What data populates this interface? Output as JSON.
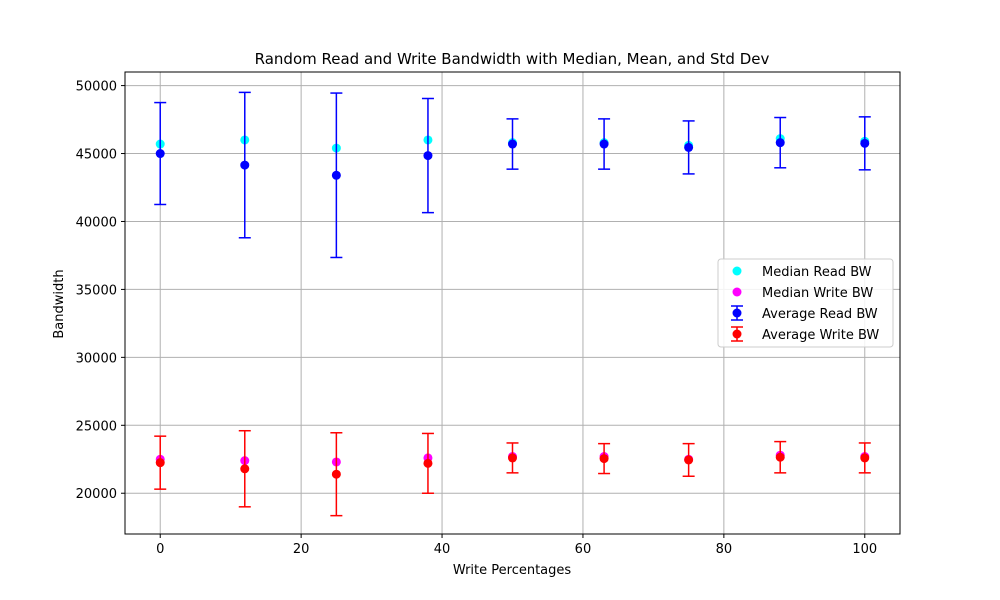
{
  "chart_data": {
    "type": "scatter",
    "title": "Random Read and Write Bandwidth with Median, Mean, and Std Dev",
    "xlabel": "Write Percentages",
    "ylabel": "Bandwidth",
    "xlim": [
      -5,
      105
    ],
    "ylim": [
      17000,
      51000
    ],
    "xticks": [
      0,
      20,
      40,
      60,
      80,
      100
    ],
    "yticks": [
      20000,
      25000,
      30000,
      35000,
      40000,
      45000,
      50000
    ],
    "grid": true,
    "legend_position": "center-right",
    "x": [
      0,
      12,
      25,
      38,
      50,
      63,
      75,
      88,
      100
    ],
    "series": [
      {
        "name": "Median Read BW",
        "kind": "scatter",
        "color": "#00ffff",
        "values": [
          45700,
          46000,
          45400,
          46000,
          45800,
          45800,
          45600,
          46100,
          45900
        ]
      },
      {
        "name": "Median Write BW",
        "kind": "scatter",
        "color": "#ff00ff",
        "values": [
          22500,
          22400,
          22300,
          22600,
          22700,
          22700,
          22500,
          22800,
          22700
        ]
      },
      {
        "name": "Average Read BW",
        "kind": "errorbar",
        "color": "#0000ff",
        "values": [
          45000,
          44150,
          43400,
          44850,
          45700,
          45700,
          45450,
          45800,
          45750
        ],
        "errors": [
          3750,
          5350,
          6050,
          4200,
          1850,
          1850,
          1950,
          1850,
          1950
        ]
      },
      {
        "name": "Average Write BW",
        "kind": "errorbar",
        "color": "#ff0000",
        "values": [
          22250,
          21800,
          21400,
          22200,
          22600,
          22550,
          22450,
          22650,
          22600
        ],
        "errors": [
          1950,
          2800,
          3050,
          2200,
          1100,
          1100,
          1200,
          1150,
          1100
        ]
      }
    ]
  }
}
